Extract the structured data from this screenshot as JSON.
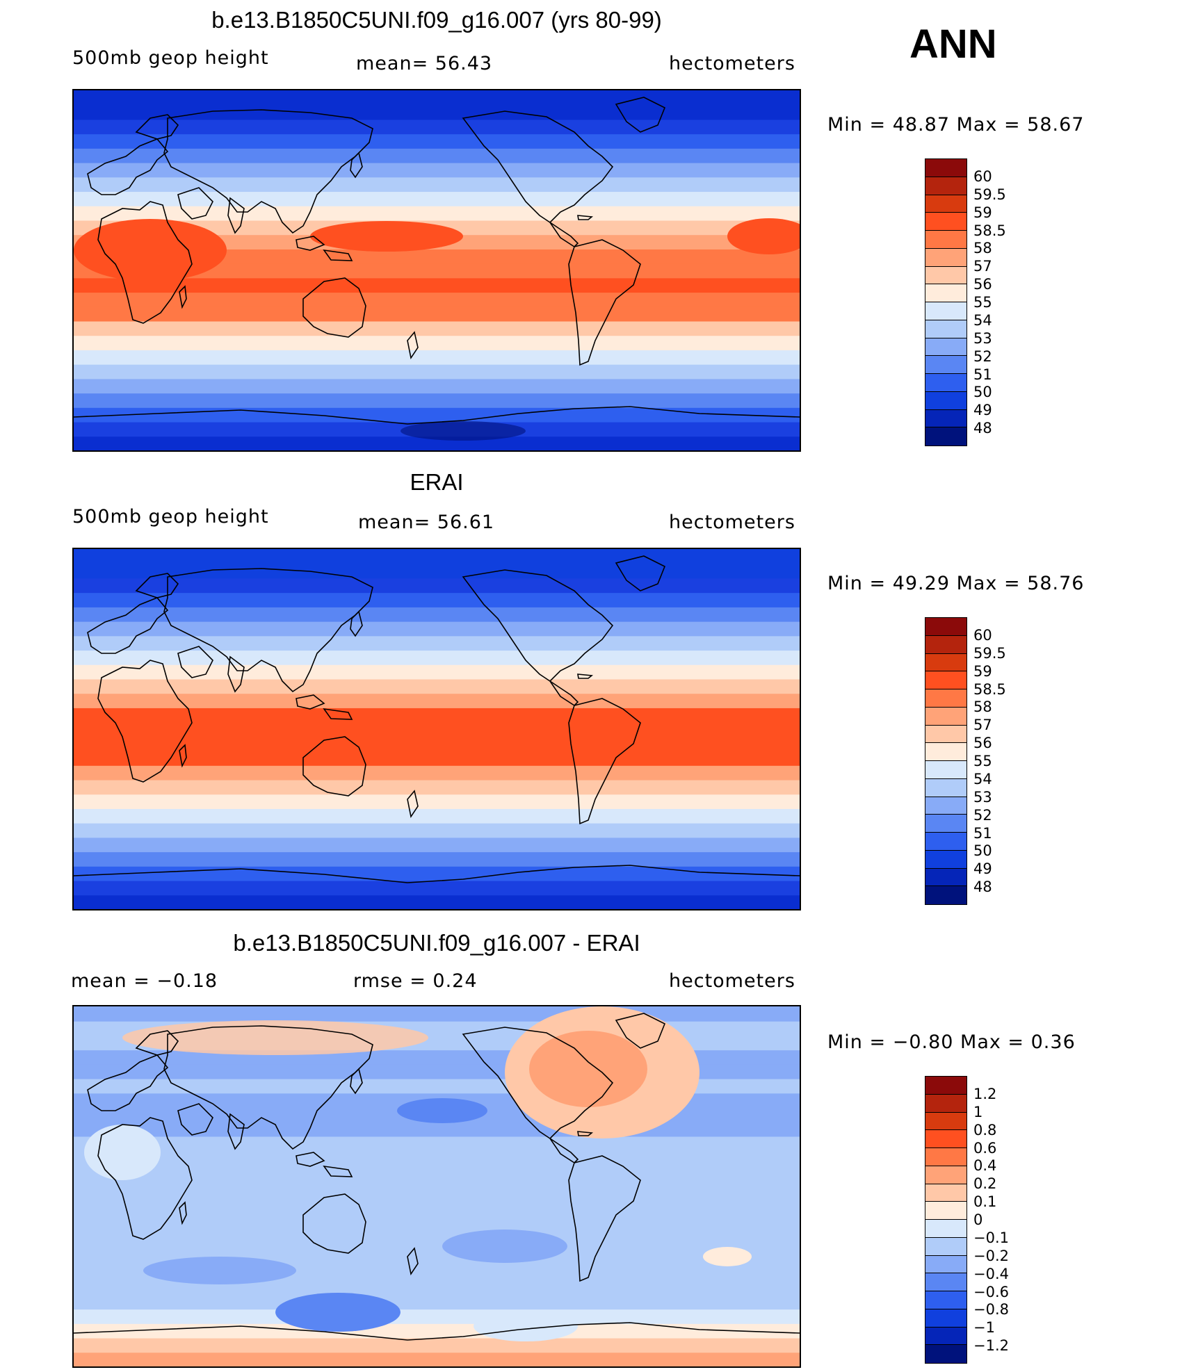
{
  "season": "ANN",
  "units": "hectometers",
  "panels": [
    {
      "id": "model",
      "title": "b.e13.B1850C5UNI.f09_g16.007 (yrs 80-99)",
      "left_label": "500mb  geop  height",
      "center_label": "mean=   56.43",
      "right_label": "hectometers",
      "min_max": "Min  =    48.87  Max  =    58.67",
      "colorbar_levels": [
        "60",
        "59.5",
        "59",
        "58.5",
        "58",
        "57",
        "56",
        "55",
        "54",
        "53",
        "52",
        "51",
        "50",
        "49",
        "48"
      ],
      "colorbar_colors": [
        "#8b0a0a",
        "#b4240d",
        "#d83b0f",
        "#ff5020",
        "#ff7845",
        "#ffa378",
        "#ffc8a8",
        "#ffecdc",
        "#d8e8fb",
        "#b0ccf9",
        "#88abf7",
        "#5a86f3",
        "#2e5fef",
        "#1040de",
        "#0525b8",
        "#00127c"
      ],
      "lat_bands": [
        "#0a2ed0",
        "#1a40e0",
        "#2e5fef",
        "#5a86f3",
        "#88abf7",
        "#b0ccf9",
        "#d8e8fb",
        "#ffecdc",
        "#ffc8a8",
        "#ff7845",
        "#ff7845",
        "#ff5020",
        "#ff7845",
        "#ff7845",
        "#ffa378",
        "#ffc8a8",
        "#ffecdc",
        "#d8e8fb",
        "#b0ccf9",
        "#88abf7",
        "#5a86f3",
        "#2e5fef",
        "#1a40e0",
        "#0a2ed0",
        "#0a2ed0"
      ]
    },
    {
      "id": "obs",
      "title": "ERAI",
      "left_label": "500mb  geop  height",
      "center_label": "mean=   56.61",
      "right_label": "hectometers",
      "min_max": "Min  =    49.29  Max  =    58.76",
      "colorbar_levels": [
        "60",
        "59.5",
        "59",
        "58.5",
        "58",
        "57",
        "56",
        "55",
        "54",
        "53",
        "52",
        "51",
        "50",
        "49",
        "48"
      ],
      "colorbar_colors": [
        "#8b0a0a",
        "#b4240d",
        "#d83b0f",
        "#ff5020",
        "#ff7845",
        "#ffa378",
        "#ffc8a8",
        "#ffecdc",
        "#d8e8fb",
        "#b0ccf9",
        "#88abf7",
        "#5a86f3",
        "#2e5fef",
        "#1040de",
        "#0525b8",
        "#00127c"
      ],
      "lat_bands": [
        "#0a2ed0",
        "#1a40e0",
        "#2e5fef",
        "#5a86f3",
        "#88abf7",
        "#b0ccf9",
        "#d8e8fb",
        "#ffecdc",
        "#ffc8a8",
        "#ffa378",
        "#ff5020",
        "#ff5020",
        "#ff5020",
        "#ff5020",
        "#ffa378",
        "#ffc8a8",
        "#ffecdc",
        "#d8e8fb",
        "#b0ccf9",
        "#88abf7",
        "#5a86f3",
        "#2e5fef",
        "#1a40e0",
        "#1040de",
        "#1040de"
      ]
    },
    {
      "id": "diff",
      "title": "b.e13.B1850C5UNI.f09_g16.007 - ERAI",
      "left_label": "mean  =    −0.18",
      "center_label": "rmse  =     0.24",
      "right_label": "hectometers",
      "min_max": "Min  =   −0.80  Max  =      0.36",
      "colorbar_levels": [
        "1.2",
        "1",
        "0.8",
        "0.6",
        "0.4",
        "0.2",
        "0.1",
        "0",
        "−0.1",
        "−0.2",
        "−0.4",
        "−0.6",
        "−0.8",
        "−1",
        "−1.2"
      ],
      "colorbar_colors": [
        "#8b0a0a",
        "#b4240d",
        "#d83b0f",
        "#ff5020",
        "#ff7845",
        "#ffa378",
        "#ffc8a8",
        "#ffecdc",
        "#d8e8fb",
        "#b0ccf9",
        "#88abf7",
        "#5a86f3",
        "#2e5fef",
        "#1040de",
        "#0525b8",
        "#00127c"
      ],
      "lat_bands": [
        "#ffa378",
        "#ffc8a8",
        "#ffecdc",
        "#d8e8fb",
        "#b0ccf9",
        "#b0ccf9",
        "#b0ccf9",
        "#b0ccf9",
        "#b0ccf9",
        "#b0ccf9",
        "#b0ccf9",
        "#b0ccf9",
        "#b0ccf9",
        "#b0ccf9",
        "#b0ccf9",
        "#b0ccf9",
        "#88abf7",
        "#88abf7",
        "#88abf7",
        "#b0ccf9",
        "#88abf7",
        "#88abf7",
        "#b0ccf9",
        "#b0ccf9",
        "#88abf7"
      ]
    }
  ]
}
